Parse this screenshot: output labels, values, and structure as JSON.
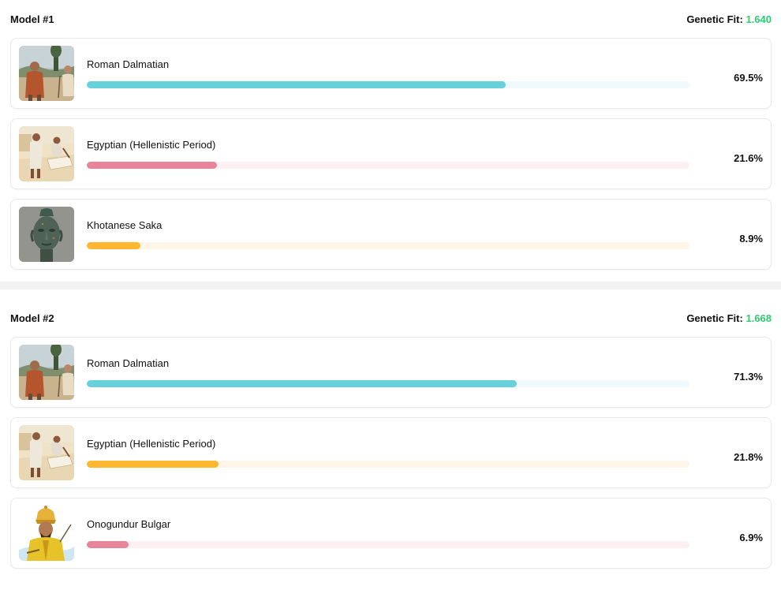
{
  "models": [
    {
      "title": "Model #1",
      "fit_label": "Genetic Fit:",
      "fit_value": "1.640",
      "components": [
        {
          "name": "Roman Dalmatian",
          "percent": "69.5%",
          "fraction": 0.695,
          "color": "#66d1db",
          "track": "#f0f9fc",
          "icon": "roman-dalmatian-thumb"
        },
        {
          "name": "Egyptian (Hellenistic Period)",
          "percent": "21.6%",
          "fraction": 0.216,
          "color": "#e8859a",
          "track": "#fcf0f2",
          "icon": "egyptian-hellenistic-thumb"
        },
        {
          "name": "Khotanese Saka",
          "percent": "8.9%",
          "fraction": 0.089,
          "color": "#ffb631",
          "track": "#fff6e8",
          "icon": "khotanese-saka-thumb"
        }
      ]
    },
    {
      "title": "Model #2",
      "fit_label": "Genetic Fit:",
      "fit_value": "1.668",
      "components": [
        {
          "name": "Roman Dalmatian",
          "percent": "71.3%",
          "fraction": 0.713,
          "color": "#66d1db",
          "track": "#f0f9fc",
          "icon": "roman-dalmatian-thumb"
        },
        {
          "name": "Egyptian (Hellenistic Period)",
          "percent": "21.8%",
          "fraction": 0.218,
          "color": "#ffb631",
          "track": "#fff6e8",
          "icon": "egyptian-hellenistic-thumb"
        },
        {
          "name": "Onogundur Bulgar",
          "percent": "6.9%",
          "fraction": 0.069,
          "color": "#e8859a",
          "track": "#fcf0f2",
          "icon": "onogundur-bulgar-thumb"
        }
      ]
    }
  ]
}
